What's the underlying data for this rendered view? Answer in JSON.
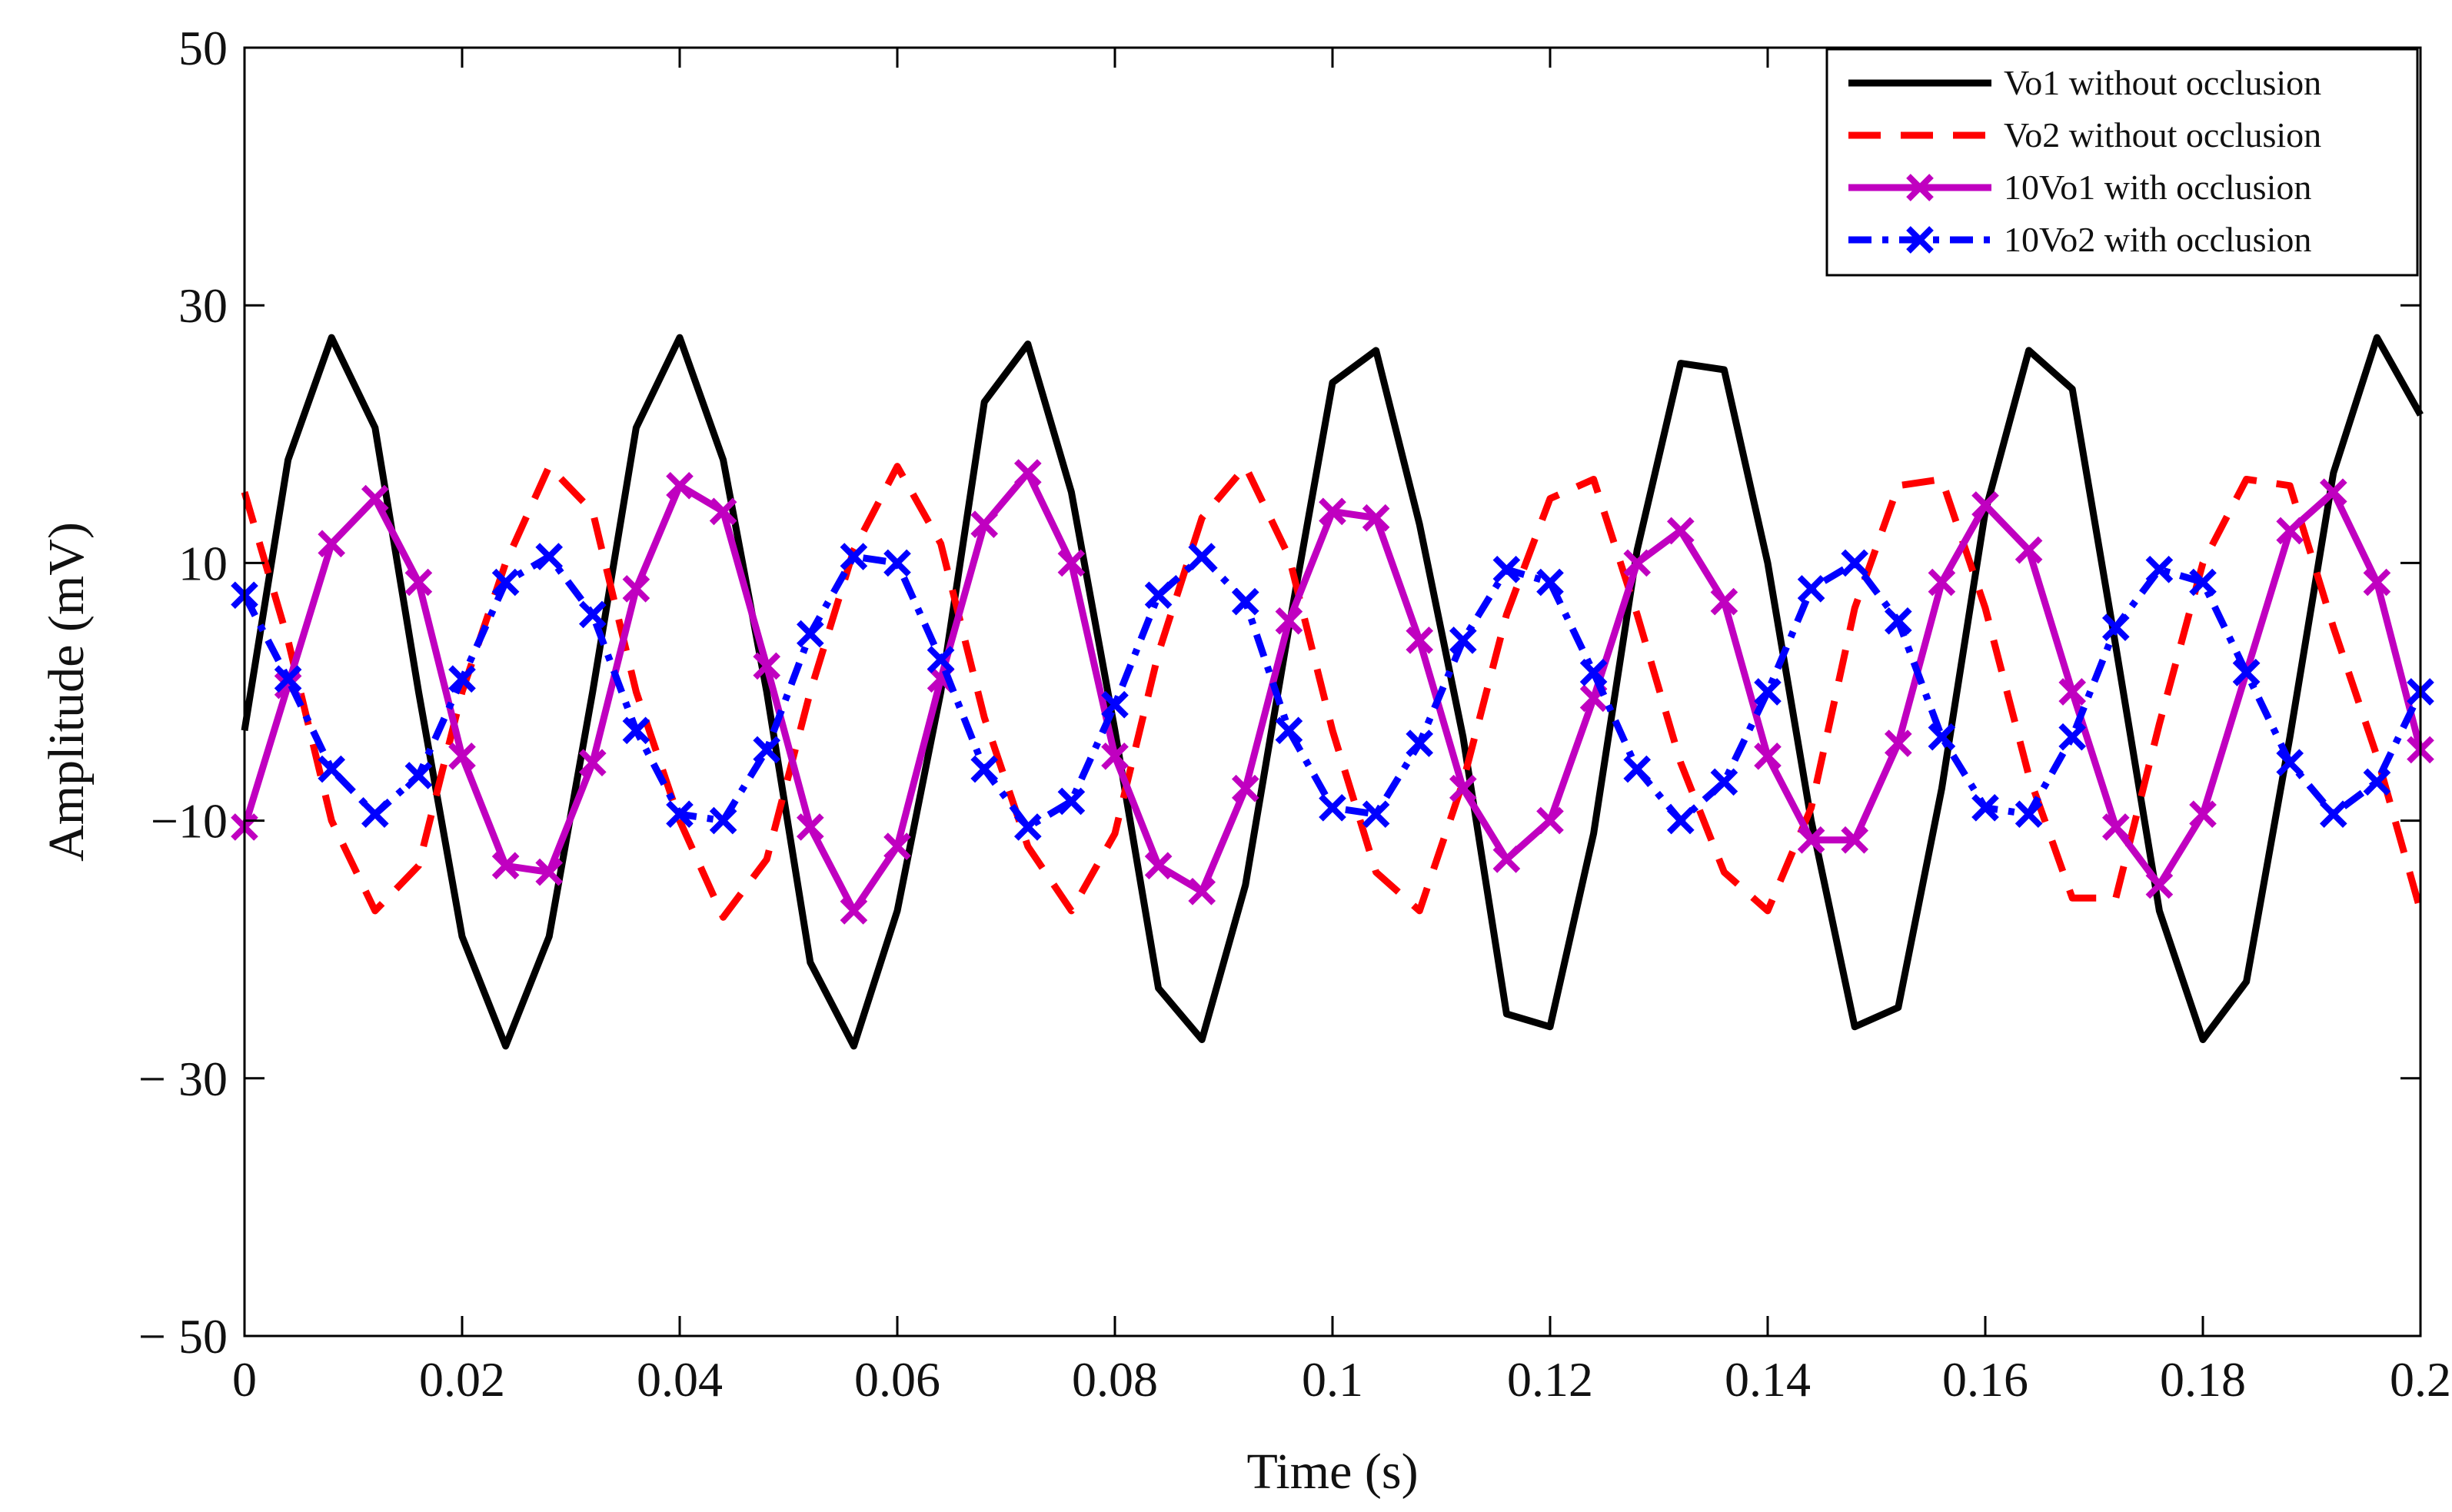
{
  "chart_data": {
    "type": "line",
    "title": "",
    "xlabel": "Time (s)",
    "ylabel": "Amplitude (mV)",
    "xlim": [
      0,
      0.2
    ],
    "ylim": [
      -50,
      50
    ],
    "grid": false,
    "legend_position": "top-right",
    "x_ticks": [
      0,
      0.02,
      0.04,
      0.06,
      0.08,
      0.1,
      0.12,
      0.14,
      0.16,
      0.18,
      0.2
    ],
    "x_tick_labels": [
      "0",
      "0.02",
      "0.04",
      "0.06",
      "0.08",
      "0.1",
      "0.12",
      "0.14",
      "0.16",
      "0.18",
      "0.2"
    ],
    "y_ticks": [
      -50,
      -30,
      -10,
      10,
      30,
      50
    ],
    "y_tick_labels": [
      "− 50",
      "− 30",
      "−10",
      "10",
      "30",
      "50"
    ],
    "x": [
      0,
      0.004,
      0.008,
      0.012,
      0.016,
      0.02,
      0.024,
      0.028,
      0.032,
      0.036,
      0.04,
      0.044,
      0.048,
      0.052,
      0.056,
      0.06,
      0.064,
      0.068,
      0.072,
      0.076,
      0.08,
      0.084,
      0.088,
      0.092,
      0.096,
      0.1,
      0.104,
      0.108,
      0.112,
      0.116,
      0.12,
      0.124,
      0.128,
      0.132,
      0.136,
      0.14,
      0.144,
      0.148,
      0.152,
      0.156,
      0.16,
      0.164,
      0.168,
      0.172,
      0.176,
      0.18,
      0.184,
      0.188,
      0.192,
      0.196,
      0.2
    ],
    "series": [
      {
        "name": "Vo1 without occlusion",
        "color": "#000000",
        "style": "solid",
        "marker": "none",
        "values": [
          -3,
          18,
          27.5,
          20.5,
          0,
          -19,
          -27.5,
          -19,
          0,
          20.5,
          27.5,
          18,
          0,
          -21,
          -27.5,
          -17,
          0,
          22.5,
          27,
          15.5,
          -3,
          -23,
          -27,
          -15,
          5,
          24,
          26.5,
          13,
          -3.5,
          -25,
          -26,
          -11,
          11,
          25.5,
          25,
          10,
          -10,
          -26,
          -24.5,
          -7.5,
          14,
          26.5,
          23.5,
          3.5,
          -17,
          -27,
          -22.5,
          -3.5,
          17,
          27.5,
          21.5
        ]
      },
      {
        "name": "Vo2 without occlusion",
        "color": "#ff0000",
        "style": "dashed",
        "marker": "none",
        "values": [
          15.5,
          4,
          -10,
          -17,
          -13.5,
          0,
          10,
          17.5,
          14,
          0,
          -10,
          -17.5,
          -13,
          0,
          11,
          17.5,
          11.5,
          -2,
          -12,
          -17,
          -11,
          3,
          13.5,
          17.5,
          10.5,
          -3,
          -14,
          -17,
          -7,
          6,
          15,
          16.5,
          6,
          -5.5,
          -14,
          -17,
          -9,
          6.5,
          16,
          16.5,
          6.5,
          -6.5,
          -16,
          -16,
          -2.5,
          10,
          16.5,
          16,
          5,
          -5,
          -17
        ]
      },
      {
        "name": "10Vo1 with occlusion",
        "color": "#c000c0",
        "style": "solid",
        "marker": "x",
        "values": [
          -10.5,
          0.5,
          11.5,
          15,
          8.5,
          -5,
          -13.5,
          -14,
          -5.5,
          8,
          16,
          14,
          2,
          -10.5,
          -17,
          -12,
          1,
          13,
          17,
          10,
          -5,
          -13.5,
          -15.5,
          -7.5,
          5.5,
          14,
          13.5,
          4,
          -7.5,
          -13,
          -10,
          -0.5,
          10,
          12.5,
          7,
          -5,
          -11.5,
          -11.5,
          -4,
          8.5,
          14.5,
          11,
          0,
          -10.5,
          -15,
          -9.5,
          1.5,
          12.5,
          15.5,
          8.5,
          -4.5
        ]
      },
      {
        "name": "10Vo2 with occlusion",
        "color": "#0000ff",
        "style": "dashdot",
        "marker": "x",
        "values": [
          7.5,
          1,
          -6,
          -9.5,
          -6.5,
          1,
          8.5,
          10.5,
          6,
          -3,
          -9.5,
          -10,
          -4.5,
          4.5,
          10.5,
          10,
          2.5,
          -6,
          -10.5,
          -8.5,
          -1,
          7.5,
          10.5,
          7,
          -3,
          -9,
          -9.5,
          -4,
          4,
          9.5,
          8.5,
          1.5,
          -6,
          -10,
          -7,
          0,
          8,
          10,
          5.5,
          -3.5,
          -9,
          -9.5,
          -3.5,
          5,
          9.5,
          8.5,
          1.5,
          -5.5,
          -9.5,
          -7,
          0
        ]
      }
    ]
  }
}
